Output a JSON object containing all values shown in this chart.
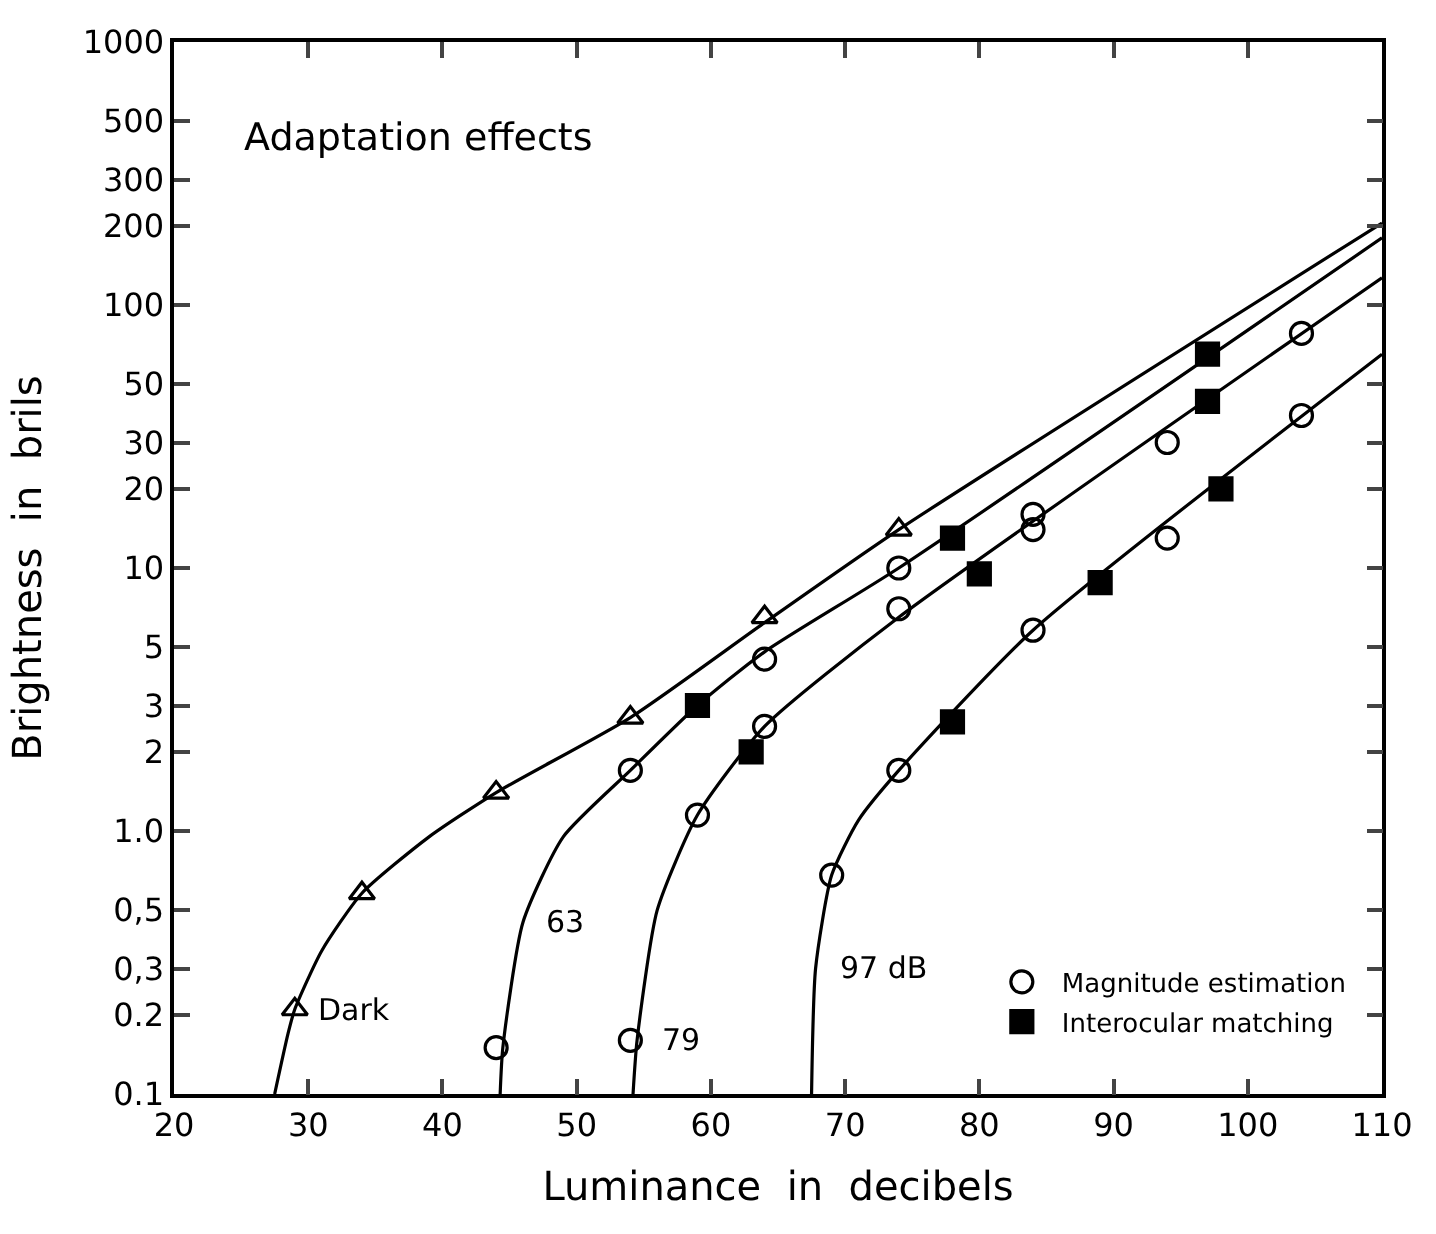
{
  "chart_data": {
    "type": "scatter",
    "title": "Adaptation effects",
    "xlabel": "Luminance  in  decibels",
    "ylabel": "Brightness  in  brils",
    "log": "y",
    "xlim": [
      20,
      110
    ],
    "xticks": [
      20,
      30,
      40,
      50,
      60,
      70,
      80,
      90,
      100,
      110
    ],
    "ylim": [
      0.1,
      1000
    ],
    "yticks": [
      {
        "value": 0.1,
        "label": "0.1"
      },
      0.2,
      {
        "value": 0.3,
        "label": "0,3"
      },
      {
        "value": 0.5,
        "label": "0,5"
      },
      {
        "value": 1,
        "label": "1.0"
      },
      2,
      3,
      5,
      10,
      20,
      30,
      50,
      100,
      200,
      300,
      500,
      1000
    ],
    "legend": "bottom right",
    "series": [
      {
        "type": "line",
        "name": "Dark",
        "color": "#000000",
        "marker": "none",
        "line_style": "solid",
        "x": [
          27.5,
          28.5,
          29,
          31,
          34,
          39,
          44,
          54,
          64,
          74,
          110
        ],
        "values": [
          0.1,
          0.17,
          0.21,
          0.35,
          0.58,
          0.95,
          1.4,
          2.7,
          6.2,
          14,
          205
        ]
      },
      {
        "type": "line",
        "name": "63",
        "color": "#000000",
        "marker": "none",
        "line_style": "solid",
        "x": [
          44.3,
          44.5,
          46,
          49,
          54,
          59,
          64,
          74,
          110
        ],
        "values": [
          0.1,
          0.15,
          0.45,
          0.95,
          1.7,
          3.0,
          4.8,
          10,
          180
        ]
      },
      {
        "type": "line",
        "name": "79",
        "color": "#000000",
        "marker": "none",
        "line_style": "solid",
        "x": [
          54.2,
          54.5,
          56,
          59,
          64,
          74,
          110
        ],
        "values": [
          0.1,
          0.16,
          0.5,
          1.15,
          2.5,
          6.5,
          127
        ]
      },
      {
        "type": "line",
        "name": "97 dB",
        "color": "#000000",
        "marker": "none",
        "line_style": "solid",
        "x": [
          67.5,
          67.8,
          69,
          71,
          74,
          84,
          110
        ],
        "values": [
          0.1,
          0.3,
          0.68,
          1.1,
          1.7,
          5.8,
          65
        ]
      },
      {
        "color": "#000000",
        "marker": "triangle",
        "x": [
          29,
          34,
          44,
          54,
          64,
          74
        ],
        "values": [
          0.21,
          0.58,
          1.4,
          2.7,
          6.5,
          14
        ]
      },
      {
        "name": "Magnitude estimation",
        "color": "#000000",
        "marker": "circle",
        "x": [
          44,
          54,
          64,
          74,
          84,
          54,
          59,
          64,
          74,
          84,
          94,
          104,
          69,
          74,
          84,
          94,
          104
        ],
        "values": [
          0.15,
          1.7,
          4.5,
          10,
          16,
          0.16,
          1.15,
          2.5,
          7,
          14,
          30,
          78,
          0.68,
          1.7,
          5.8,
          13,
          38
        ]
      },
      {
        "name": "Interocular matching",
        "color": "#000000",
        "marker": "square",
        "x": [
          59,
          78,
          97,
          63,
          80,
          97,
          78,
          89,
          98
        ],
        "values": [
          3.0,
          13,
          65,
          2.0,
          9.5,
          43,
          2.6,
          8.8,
          20
        ]
      }
    ]
  }
}
